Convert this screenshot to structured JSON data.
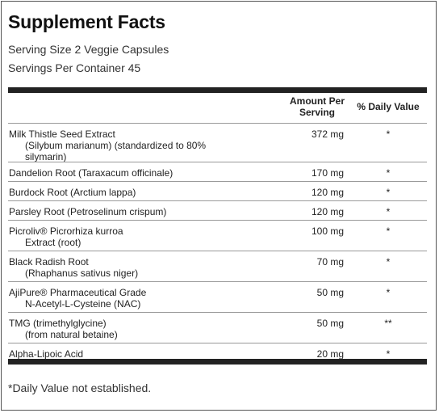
{
  "title": "Supplement Facts",
  "serving_size": "Serving Size 2 Veggie Capsules",
  "servings_per_container": "Servings Per Container 45",
  "headers": {
    "amount_line1": "Amount Per",
    "amount_line2": "Serving",
    "daily_value": "% Daily Value"
  },
  "rows": [
    {
      "line1": "Milk Thistle Seed Extract",
      "line2": "(Silybum marianum) (standardized to 80%",
      "line3": "silymarin)",
      "amount": "372 mg",
      "dv": "*"
    },
    {
      "line1": "Dandelion Root (Taraxacum officinale)",
      "line2": "",
      "line3": "",
      "amount": "170 mg",
      "dv": "*"
    },
    {
      "line1": "Burdock Root (Arctium lappa)",
      "line2": "",
      "line3": "",
      "amount": "120 mg",
      "dv": "*"
    },
    {
      "line1": "Parsley Root (Petroselinum crispum)",
      "line2": "",
      "line3": "",
      "amount": "120 mg",
      "dv": "*"
    },
    {
      "line1": "Picroliv® Picrorhiza kurroa",
      "line2": "Extract (root)",
      "line3": "",
      "amount": "100 mg",
      "dv": "*"
    },
    {
      "line1": "Black Radish Root",
      "line2": "(Rhaphanus sativus niger)",
      "line3": "",
      "amount": "70 mg",
      "dv": "*"
    },
    {
      "line1": "AjiPure® Pharmaceutical Grade",
      "line2": "N-Acetyl-L-Cysteine (NAC)",
      "line3": "",
      "amount": "50 mg",
      "dv": "*"
    },
    {
      "line1": "TMG (trimethylglycine)",
      "line2": "(from natural betaine)",
      "line3": "",
      "amount": "50 mg",
      "dv": "**"
    },
    {
      "line1": "Alpha-Lipoic Acid",
      "line2": "",
      "line3": "",
      "amount": "20 mg",
      "dv": "*"
    }
  ],
  "footnote": "*Daily Value not established."
}
